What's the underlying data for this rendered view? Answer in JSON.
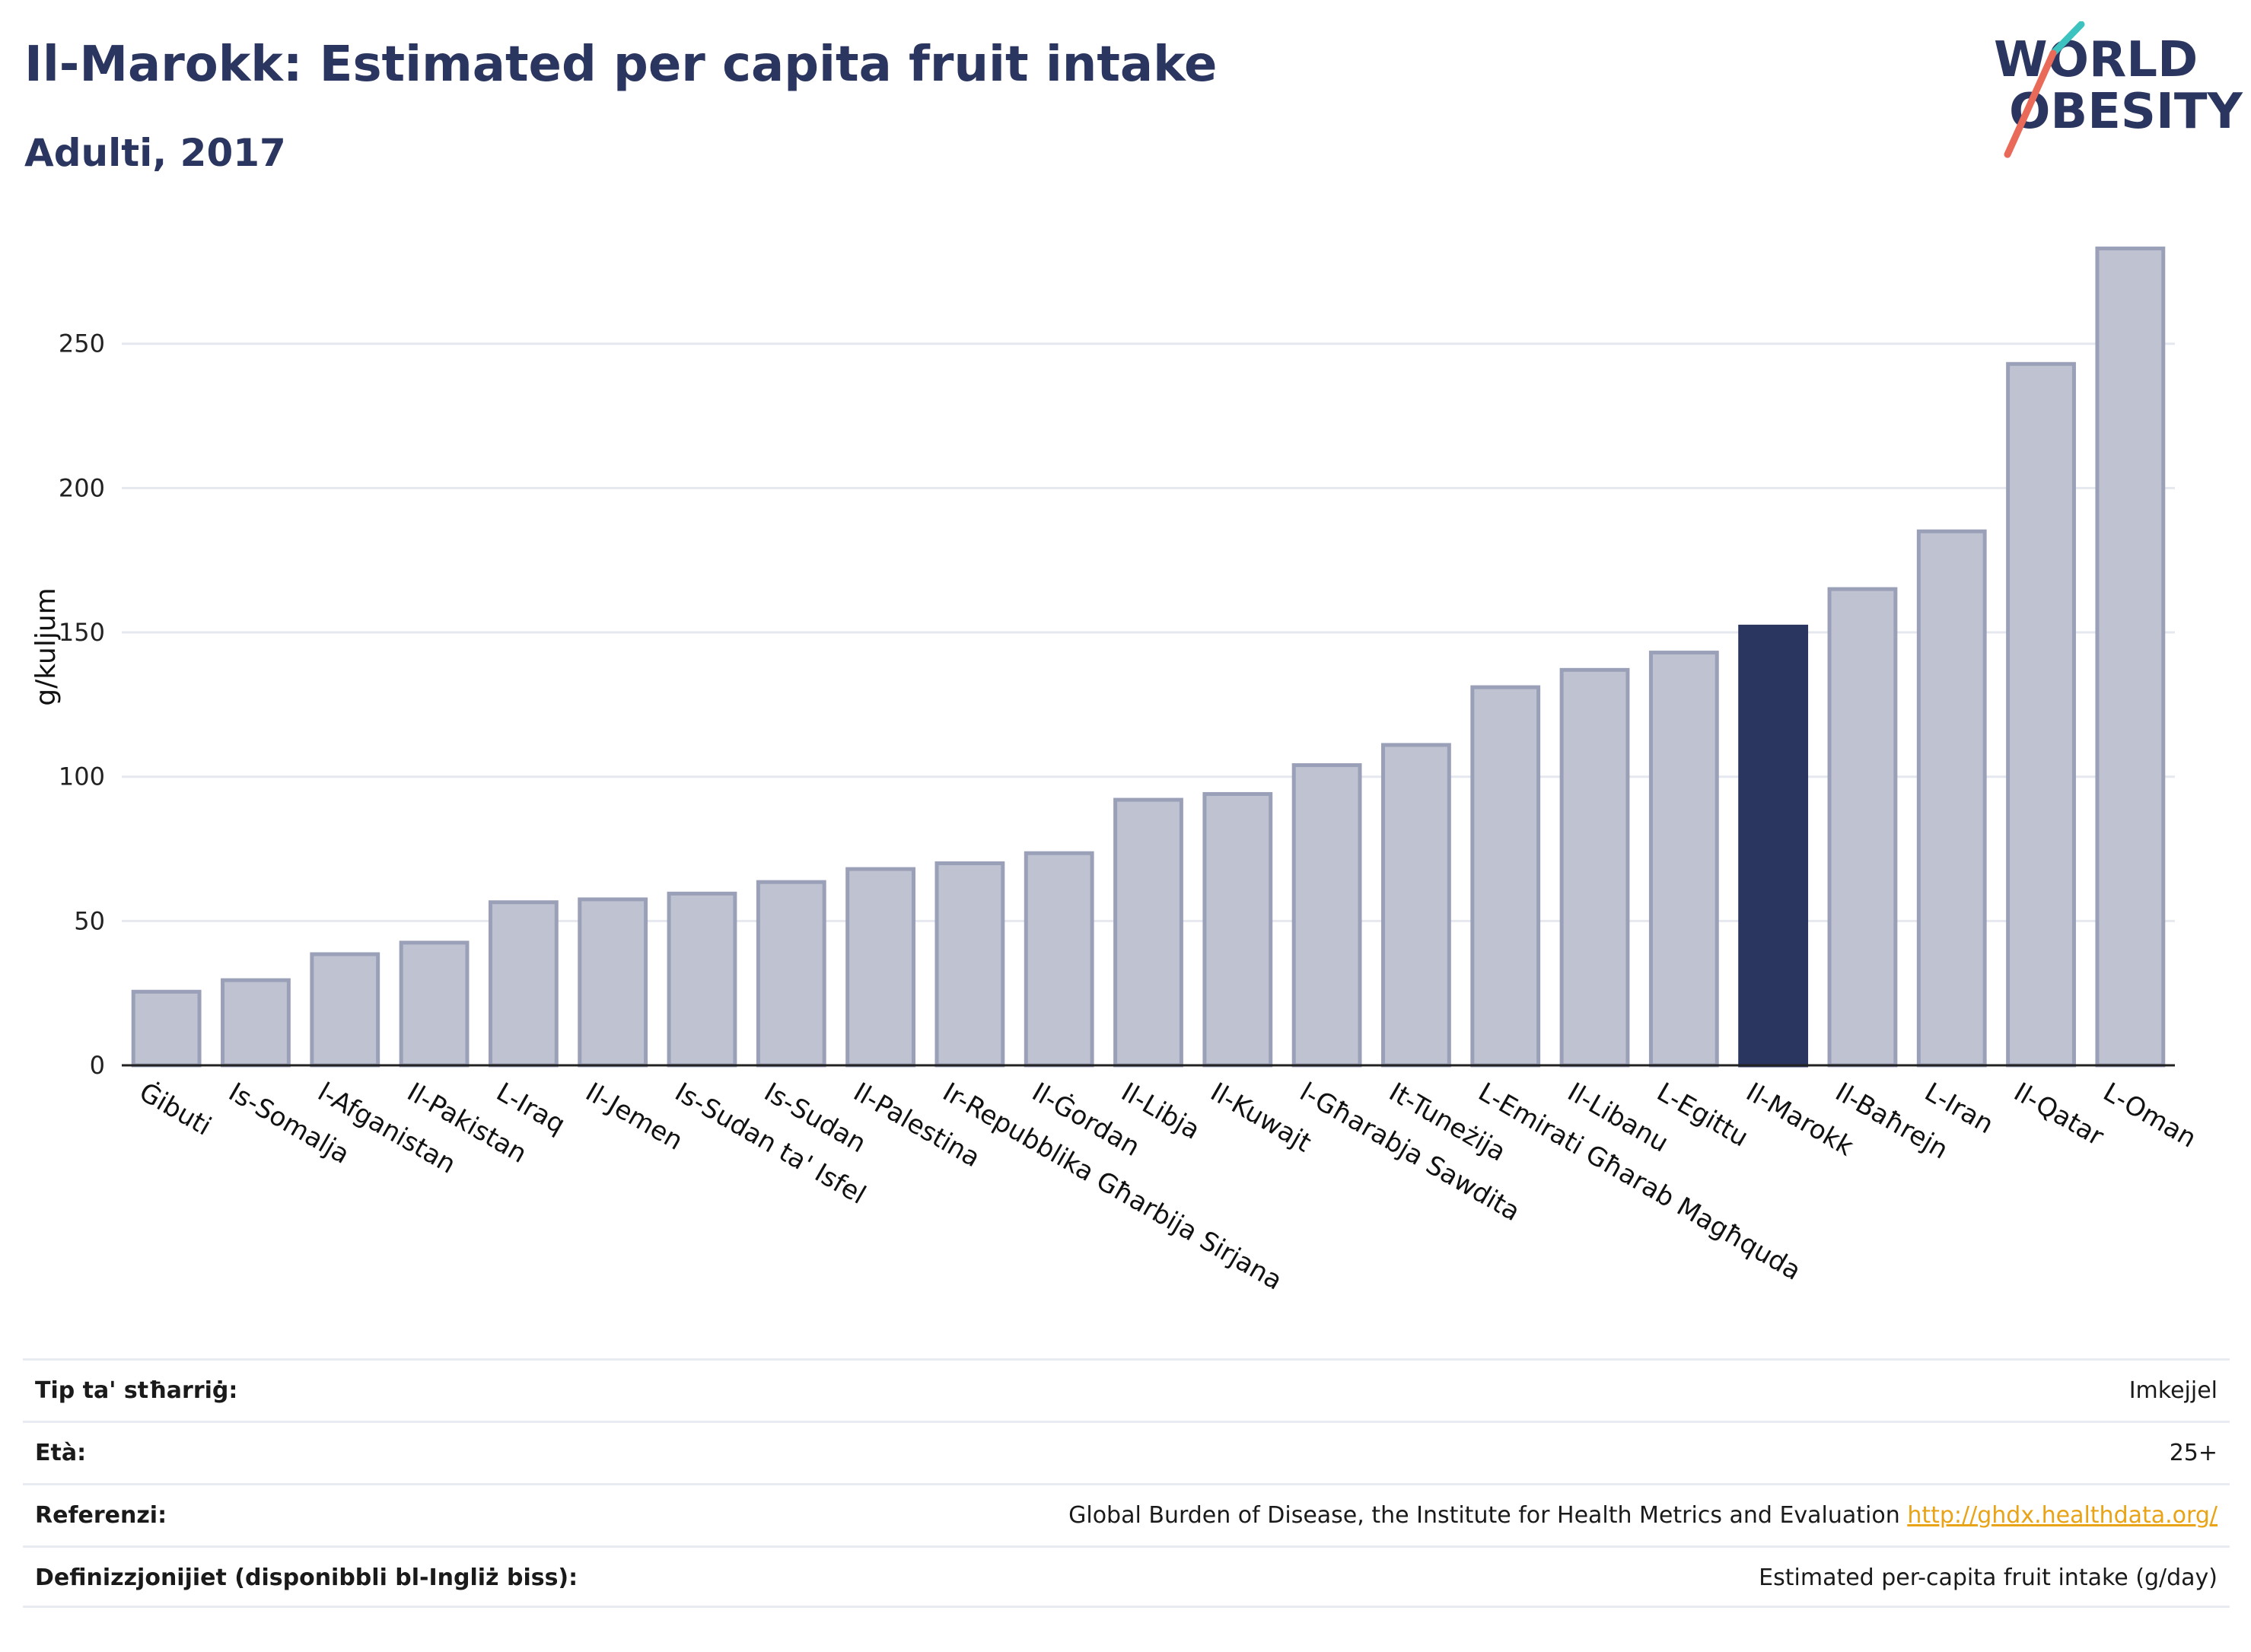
{
  "header": {
    "title": "Il-Marokk: Estimated per capita fruit intake",
    "subtitle": "Adulti, 2017"
  },
  "logo": {
    "line1": "WORLD",
    "line2": "OBESITY"
  },
  "chart_data": {
    "type": "bar",
    "ylabel": "g/kuljum",
    "ylim": [
      0,
      290
    ],
    "yticks": [
      0,
      50,
      100,
      150,
      200,
      250
    ],
    "grid": true,
    "categories": [
      "Ġibuti",
      "Is-Somalja",
      "l-Afganistan",
      "Il-Pakistan",
      "L-Iraq",
      "Il-Jemen",
      "Is-Sudan ta' Isfel",
      "Is-Sudan",
      "Il-Palestina",
      "Ir-Repubblika Għarbija Sirjana",
      "Il-Ġordan",
      "Il-Libja",
      "Il-Kuwajt",
      "l-Għarabja Sawdita",
      "It-Tuneżija",
      "L-Emirati Għarab Magħquda",
      "Il-Libanu",
      "L-Egittu",
      "Il-Marokk",
      "Il-Baħrejn",
      "L-Iran",
      "Il-Qatar",
      "L-Oman"
    ],
    "values": [
      25.5,
      29.5,
      38.5,
      42.5,
      56.5,
      57.5,
      59.5,
      63.5,
      68,
      70,
      73.5,
      92,
      94,
      104,
      111,
      131,
      137,
      143,
      152,
      165,
      185,
      243,
      283
    ],
    "highlight": "Il-Marokk",
    "colors": {
      "bar": "#bfc3d1",
      "bar_edge": "#9aa0b8",
      "highlight": "#2b3660",
      "grid": "#e6e8ef"
    }
  },
  "info": {
    "rows": [
      {
        "label": "Tip ta' stħarriġ:",
        "value": "Imkejjel"
      },
      {
        "label": "Età:",
        "value": "25+"
      },
      {
        "label": "Referenzi:",
        "value": "Global Burden of Disease, the Institute for Health Metrics and Evaluation",
        "link": "http://ghdx.healthdata.org/"
      },
      {
        "label": "Definizzjonijiet (disponibbli bl-Ingliż biss):",
        "value": "Estimated per-capita fruit intake (g/day)"
      }
    ]
  }
}
